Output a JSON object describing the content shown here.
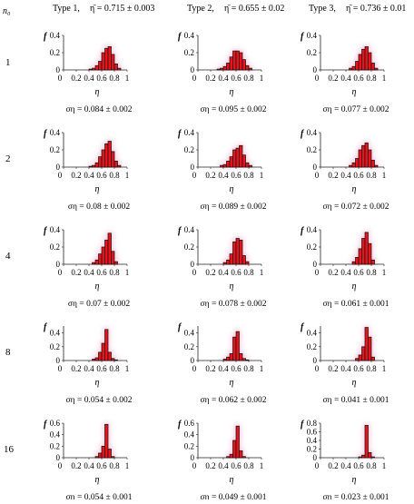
{
  "header": {
    "n0_label": "n₀",
    "columns": [
      "Type 1,",
      "Type 2,",
      "Type 3,"
    ],
    "means": [
      "η̄ = 0.715 ± 0.003",
      "η̄ = 0.655 ± 0.02",
      "η̄ = 0.736 ± 0.01"
    ]
  },
  "rows": [
    "1",
    "2",
    "4",
    "8",
    "16"
  ],
  "axis": {
    "xlabel": "η",
    "ylabel": "f",
    "xticks": [
      "0",
      "0.2",
      "0.4",
      "0.6",
      "0.8",
      "1"
    ]
  },
  "colors": {
    "bar_fill": "#e8141c",
    "bar_edge": "#111111",
    "halo": "#f7c6dd",
    "line": "#222222"
  },
  "chart_data": [
    {
      "type": "bar",
      "row": "1",
      "column": "Type 1",
      "ylim": [
        0,
        0.4
      ],
      "yticks": [
        "0",
        "0.2",
        "0.4"
      ],
      "x": [
        0.425,
        0.475,
        0.525,
        0.575,
        0.625,
        0.675,
        0.725,
        0.775,
        0.825,
        0.875
      ],
      "values": [
        0.01,
        0.02,
        0.05,
        0.1,
        0.2,
        0.25,
        0.27,
        0.18,
        0.07,
        0.02
      ],
      "sigma": "ση = 0.084 ± 0.002"
    },
    {
      "type": "bar",
      "row": "1",
      "column": "Type 2",
      "ylim": [
        0,
        0.4
      ],
      "yticks": [
        "0",
        "0.2",
        "0.4"
      ],
      "x": [
        0.325,
        0.375,
        0.425,
        0.475,
        0.525,
        0.575,
        0.625,
        0.675,
        0.725,
        0.775,
        0.825
      ],
      "values": [
        0.01,
        0.02,
        0.04,
        0.08,
        0.15,
        0.22,
        0.22,
        0.2,
        0.12,
        0.05,
        0.02
      ],
      "sigma": "ση = 0.095 ± 0.002"
    },
    {
      "type": "bar",
      "row": "1",
      "column": "Type 3",
      "ylim": [
        0,
        0.4
      ],
      "yticks": [
        "0",
        "0.2",
        "0.4"
      ],
      "x": [
        0.475,
        0.525,
        0.575,
        0.625,
        0.675,
        0.725,
        0.775,
        0.825,
        0.875
      ],
      "values": [
        0.02,
        0.04,
        0.1,
        0.18,
        0.24,
        0.27,
        0.2,
        0.08,
        0.02
      ],
      "sigma": "ση = 0.077 ± 0.002"
    },
    {
      "type": "bar",
      "row": "2",
      "column": "Type 1",
      "ylim": [
        0,
        0.4
      ],
      "yticks": [
        "0",
        "0.2",
        "0.4"
      ],
      "x": [
        0.425,
        0.475,
        0.525,
        0.575,
        0.625,
        0.675,
        0.725,
        0.775,
        0.825,
        0.875
      ],
      "values": [
        0.01,
        0.02,
        0.05,
        0.12,
        0.2,
        0.27,
        0.3,
        0.18,
        0.07,
        0.02
      ],
      "sigma": "ση = 0.08 ± 0.002"
    },
    {
      "type": "bar",
      "row": "2",
      "column": "Type 2",
      "ylim": [
        0,
        0.4
      ],
      "yticks": [
        "0",
        "0.2",
        "0.4"
      ],
      "x": [
        0.375,
        0.425,
        0.475,
        0.525,
        0.575,
        0.625,
        0.675,
        0.725,
        0.775,
        0.825
      ],
      "values": [
        0.02,
        0.03,
        0.07,
        0.12,
        0.2,
        0.22,
        0.25,
        0.14,
        0.05,
        0.02
      ],
      "sigma": "ση = 0.089 ± 0.002"
    },
    {
      "type": "bar",
      "row": "2",
      "column": "Type 3",
      "ylim": [
        0,
        0.4
      ],
      "yticks": [
        "0",
        "0.2",
        "0.4"
      ],
      "x": [
        0.475,
        0.525,
        0.575,
        0.625,
        0.675,
        0.725,
        0.775,
        0.825,
        0.875
      ],
      "values": [
        0.02,
        0.05,
        0.1,
        0.2,
        0.25,
        0.28,
        0.2,
        0.08,
        0.02
      ],
      "sigma": "ση = 0.072 ± 0.002"
    },
    {
      "type": "bar",
      "row": "4",
      "column": "Type 1",
      "ylim": [
        0,
        0.4
      ],
      "yticks": [
        "0",
        "0.2",
        "0.4"
      ],
      "x": [
        0.475,
        0.525,
        0.575,
        0.625,
        0.675,
        0.725,
        0.775,
        0.825
      ],
      "values": [
        0.02,
        0.05,
        0.12,
        0.2,
        0.28,
        0.36,
        0.15,
        0.03
      ],
      "sigma": "ση = 0.07 ± 0.002"
    },
    {
      "type": "bar",
      "row": "4",
      "column": "Type 2",
      "ylim": [
        0,
        0.4
      ],
      "yticks": [
        "0",
        "0.2",
        "0.4"
      ],
      "x": [
        0.425,
        0.475,
        0.525,
        0.575,
        0.625,
        0.675,
        0.725,
        0.775
      ],
      "values": [
        0.02,
        0.05,
        0.12,
        0.26,
        0.3,
        0.28,
        0.1,
        0.03
      ],
      "sigma": "ση = 0.078 ± 0.002"
    },
    {
      "type": "bar",
      "row": "4",
      "column": "Type 3",
      "ylim": [
        0,
        0.4
      ],
      "yticks": [
        "0",
        "0.2",
        "0.4"
      ],
      "x": [
        0.525,
        0.575,
        0.625,
        0.675,
        0.725,
        0.775,
        0.825
      ],
      "values": [
        0.03,
        0.08,
        0.18,
        0.3,
        0.37,
        0.24,
        0.05
      ],
      "sigma": "ση = 0.061 ± 0.001"
    },
    {
      "type": "bar",
      "row": "8",
      "column": "Type 1",
      "ylim": [
        0,
        0.5
      ],
      "yticks": [
        "0",
        "0.2",
        "0.4"
      ],
      "x": [
        0.475,
        0.525,
        0.575,
        0.625,
        0.675,
        0.725,
        0.775,
        0.825
      ],
      "values": [
        0.02,
        0.04,
        0.12,
        0.25,
        0.45,
        0.12,
        0.03,
        0.01
      ],
      "sigma": "ση = 0.054 ± 0.002"
    },
    {
      "type": "bar",
      "row": "8",
      "column": "Type 2",
      "ylim": [
        0,
        0.5
      ],
      "yticks": [
        "0",
        "0.2",
        "0.4"
      ],
      "x": [
        0.425,
        0.475,
        0.525,
        0.575,
        0.625,
        0.675,
        0.725,
        0.775
      ],
      "values": [
        0.02,
        0.05,
        0.1,
        0.34,
        0.42,
        0.1,
        0.03,
        0.01
      ],
      "sigma": "ση = 0.062 ± 0.002"
    },
    {
      "type": "bar",
      "row": "8",
      "column": "Type 3",
      "ylim": [
        0,
        0.5
      ],
      "yticks": [
        "0",
        "0.2",
        "0.4"
      ],
      "x": [
        0.575,
        0.625,
        0.675,
        0.725,
        0.775,
        0.825
      ],
      "values": [
        0.03,
        0.08,
        0.2,
        0.48,
        0.34,
        0.05
      ],
      "sigma": "ση = 0.041 ± 0.001"
    },
    {
      "type": "bar",
      "row": "16",
      "column": "Type 1",
      "ylim": [
        0,
        0.6
      ],
      "yticks": [
        "0",
        "0.2",
        "0.4",
        "0.6"
      ],
      "x": [
        0.525,
        0.575,
        0.625,
        0.675,
        0.725,
        0.775
      ],
      "values": [
        0.02,
        0.08,
        0.2,
        0.58,
        0.15,
        0.02
      ],
      "sigma": "ση = 0.054 ± 0.001"
    },
    {
      "type": "bar",
      "row": "16",
      "column": "Type 2",
      "ylim": [
        0,
        0.6
      ],
      "yticks": [
        "0",
        "0.2",
        "0.4",
        "0.6"
      ],
      "x": [
        0.475,
        0.525,
        0.575,
        0.625,
        0.675,
        0.725
      ],
      "values": [
        0.02,
        0.06,
        0.3,
        0.55,
        0.12,
        0.02
      ],
      "sigma": "ση = 0.049 ± 0.001"
    },
    {
      "type": "bar",
      "row": "16",
      "column": "Type 3",
      "ylim": [
        0,
        0.8
      ],
      "yticks": [
        "0",
        "0.2",
        "0.4",
        "0.6",
        "0.8"
      ],
      "x": [
        0.625,
        0.675,
        0.725,
        0.775,
        0.825
      ],
      "values": [
        0.02,
        0.06,
        0.75,
        0.12,
        0.02
      ],
      "sigma": "ση = 0.023 ± 0.001"
    }
  ]
}
